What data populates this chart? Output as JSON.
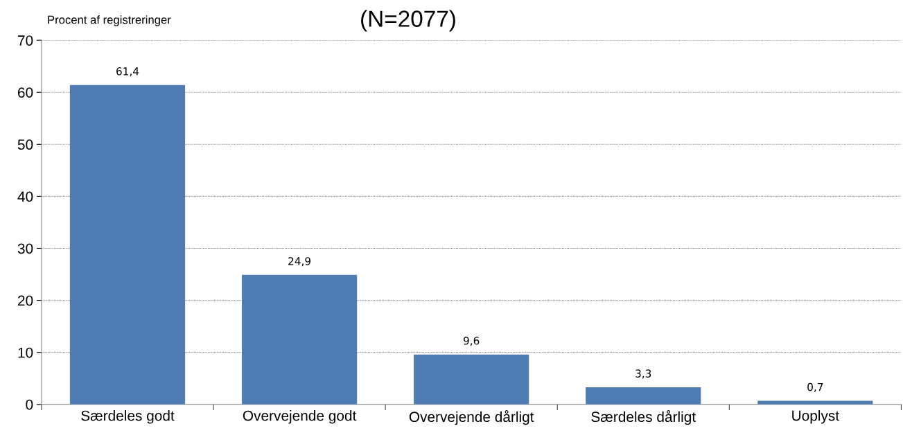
{
  "chart_data": {
    "type": "bar",
    "title": "(N=2077)",
    "ylabel": "Procent af registreringer",
    "categories": [
      "Særdeles godt",
      "Overvejende godt",
      "Overvejende dårligt",
      "Særdeles dårligt",
      "Uoplyst"
    ],
    "values": [
      61.4,
      24.9,
      9.6,
      3.3,
      0.7
    ],
    "value_labels": [
      "61,4",
      "24,9",
      "9,6",
      "3,3",
      "0,7"
    ],
    "color": "#4f7cb3",
    "ylim": [
      0,
      70
    ],
    "yticks": [
      0,
      10,
      20,
      30,
      40,
      50,
      60,
      70
    ],
    "grid": "y"
  }
}
